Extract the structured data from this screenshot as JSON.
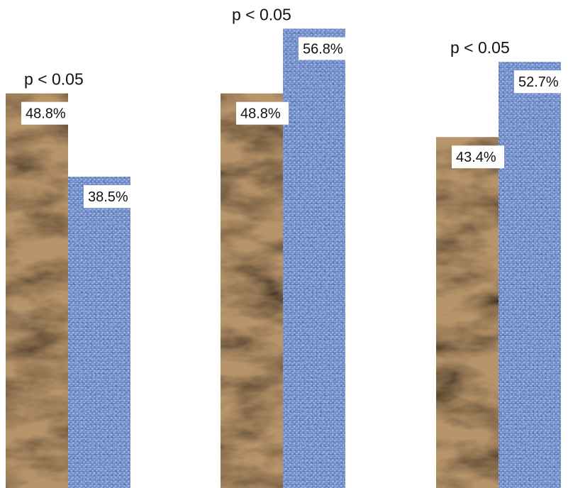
{
  "chart_data": {
    "type": "bar",
    "groups": [
      {
        "annotation": "p < 0.05",
        "values": [
          48.8,
          38.5
        ],
        "labels": [
          "48.8%",
          "38.5%"
        ]
      },
      {
        "annotation": "p < 0.05",
        "values": [
          48.8,
          56.8
        ],
        "labels": [
          "48.8%",
          "56.8%"
        ]
      },
      {
        "annotation": "p < 0.05",
        "values": [
          43.4,
          52.7
        ],
        "labels": [
          "43.4%",
          "52.7%"
        ]
      }
    ],
    "series_colors": [
      "#b8946a",
      "#5b7fc4"
    ],
    "ylim": [
      0,
      60
    ],
    "grid": false,
    "legend": "none"
  }
}
